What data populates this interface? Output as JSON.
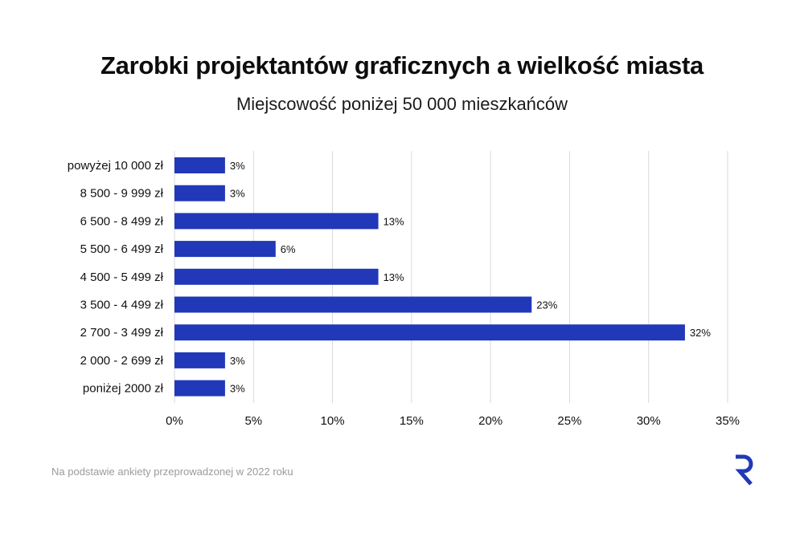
{
  "title": "Zarobki projektantów graficznych a wielkość miasta",
  "subtitle": "Miejscowość poniżej 50 000 mieszkańców",
  "footnote": "Na podstawie ankiety przeprowadzonej w 2022 roku",
  "logo_icon": "r-logo-icon",
  "colors": {
    "bar": "#2138b8",
    "grid": "#d9d9d9",
    "logo": "#2138b8"
  },
  "chart_data": {
    "type": "bar",
    "orientation": "horizontal",
    "categories": [
      "powyżej 10 000 zł",
      "8 500 - 9 999 zł",
      "6 500 - 8 499 zł",
      "5 500 - 6 499 zł",
      "4 500 - 5 499 zł",
      "3 500 - 4 499 zł",
      "2 700 - 3 499 zł",
      "2 000 - 2 699 zł",
      "poniżej 2000 zł"
    ],
    "values": [
      3.2,
      3.2,
      12.9,
      6.4,
      12.9,
      22.6,
      32.3,
      3.2,
      3.2
    ],
    "data_labels": [
      "3%",
      "3%",
      "13%",
      "6%",
      "13%",
      "23%",
      "32%",
      "3%",
      "3%"
    ],
    "xlim": [
      0,
      35
    ],
    "x_ticks": [
      0,
      5,
      10,
      15,
      20,
      25,
      30,
      35
    ],
    "x_tick_labels": [
      "0%",
      "5%",
      "10%",
      "15%",
      "20%",
      "25%",
      "30%",
      "35%"
    ],
    "grid": "vertical",
    "legend": "none"
  }
}
